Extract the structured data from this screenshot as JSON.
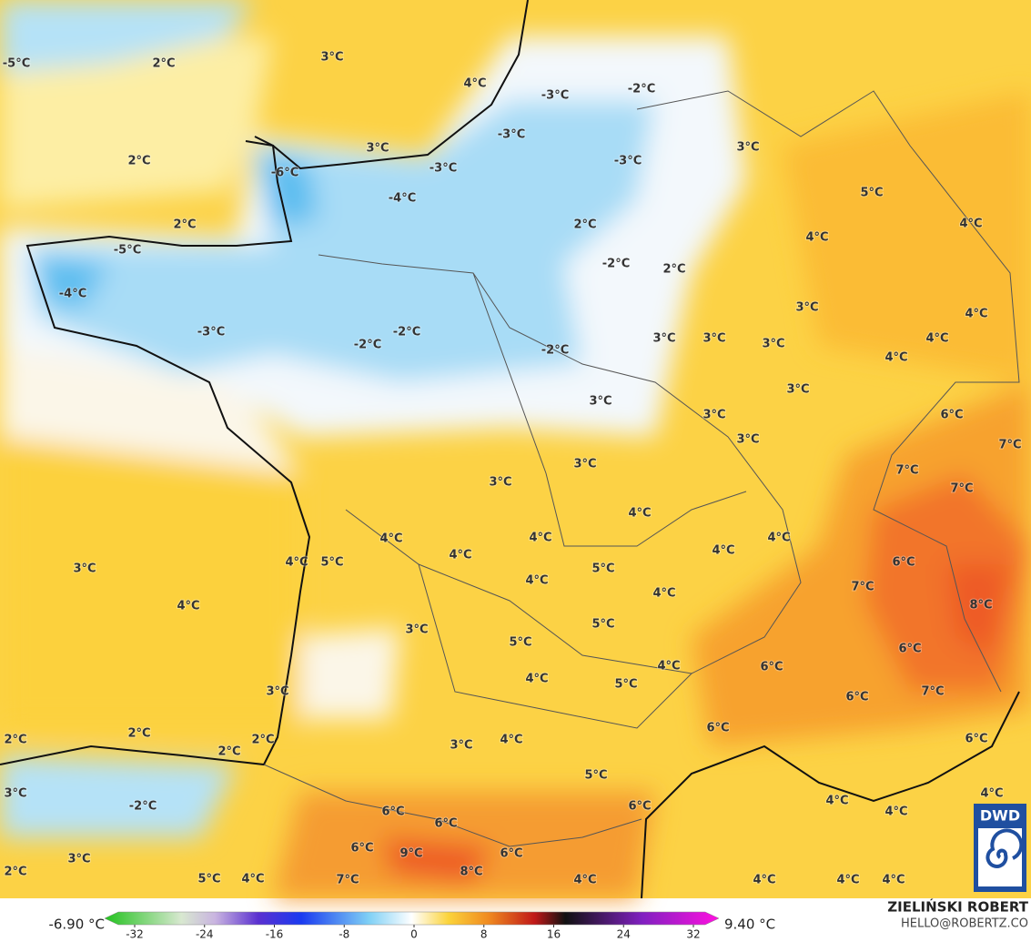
{
  "map": {
    "labels": [
      "-5°C",
      "2°C",
      "3°C",
      "4°C",
      "-3°C",
      "-2°C",
      "3°C",
      "2°C",
      "-3°C",
      "-3°C",
      "-3°C",
      "3°C",
      "-6°C",
      "-4°C",
      "5°C",
      "2°C",
      "2°C",
      "4°C",
      "-5°C",
      "4°C",
      "-2°C",
      "2°C",
      "-4°C",
      "3°C",
      "4°C",
      "-3°C",
      "-2°C",
      "-2°C",
      "-2°C",
      "3°C",
      "3°C",
      "3°C",
      "4°C",
      "4°C",
      "3°C",
      "3°C",
      "3°C",
      "6°C",
      "3°C",
      "7°C",
      "3°C",
      "3°C",
      "7°C",
      "7°C",
      "4°C",
      "4°C",
      "4°C",
      "4°C",
      "4°C",
      "4°C",
      "4°C",
      "5°C",
      "3°C",
      "5°C",
      "6°C",
      "4°C",
      "7°C",
      "4°C",
      "4°C",
      "8°C",
      "3°C",
      "5°C",
      "5°C",
      "6°C",
      "4°C",
      "4°C",
      "5°C",
      "6°C",
      "6°C",
      "7°C",
      "3°C",
      "6°C",
      "2°C",
      "2°C",
      "2°C",
      "2°C",
      "4°C",
      "3°C",
      "6°C",
      "5°C",
      "3°C",
      "-2°C",
      "6°C",
      "6°C",
      "4°C",
      "4°C",
      "4°C",
      "6°C",
      "6°C",
      "9°C",
      "6°C",
      "3°C",
      "8°C",
      "2°C",
      "5°C",
      "4°C",
      "7°C",
      "4°C",
      "4°C",
      "4°C",
      "4°C"
    ],
    "colorbar": {
      "min_label": "-6.90 °C",
      "max_label": "9.40 °C",
      "range": [
        -32,
        32
      ],
      "ticks": [
        -32,
        -24,
        -16,
        -8,
        0,
        8,
        16,
        24,
        32
      ]
    },
    "credit": {
      "author": "ZIELIŃSKI ROBERT",
      "contact": "HELLO@ROBERTZ.CO"
    },
    "logo": "DWD"
  }
}
